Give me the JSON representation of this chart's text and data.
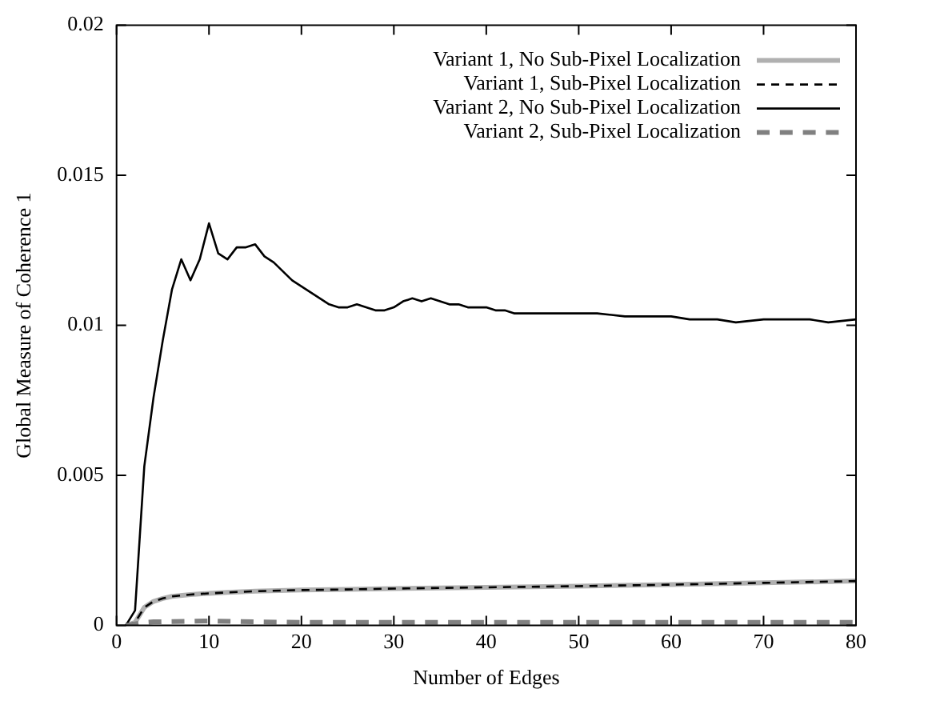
{
  "chart_data": {
    "type": "line",
    "xlabel": "Number of Edges",
    "ylabel": "Global Measure of Coherence 1",
    "xlim": [
      0,
      80
    ],
    "xticks": [
      0,
      10,
      20,
      30,
      40,
      50,
      60,
      70,
      80
    ],
    "ylim": [
      0,
      0.02
    ],
    "yticks": [
      0,
      0.005,
      0.01,
      0.015,
      0.02
    ],
    "grid": false,
    "legend": "top right",
    "marker": "none",
    "series": [
      {
        "name": "Variant 1, No Sub-Pixel Localization",
        "color": "#b0b0b0",
        "line_style": "solid",
        "x": [
          1,
          2,
          3,
          4,
          5,
          6,
          8,
          10,
          12,
          15,
          20,
          25,
          30,
          40,
          50,
          60,
          70,
          80
        ],
        "values": [
          0,
          0.0001,
          0.0006,
          0.0008,
          0.0009,
          0.00097,
          0.00103,
          0.00107,
          0.0011,
          0.00114,
          0.00118,
          0.0012,
          0.00123,
          0.00127,
          0.00131,
          0.00136,
          0.00142,
          0.00148
        ]
      },
      {
        "name": "Variant 1, Sub-Pixel Localization",
        "color": "#000000",
        "line_style": "dashed",
        "x": [
          1,
          2,
          3,
          4,
          5,
          6,
          8,
          10,
          12,
          15,
          20,
          25,
          30,
          40,
          50,
          60,
          70,
          80
        ],
        "values": [
          0,
          0.0001,
          0.0006,
          0.0008,
          0.0009,
          0.00097,
          0.00103,
          0.00107,
          0.0011,
          0.00114,
          0.00118,
          0.0012,
          0.00123,
          0.00127,
          0.00131,
          0.00136,
          0.00142,
          0.00148
        ]
      },
      {
        "name": "Variant 2, No Sub-Pixel Localization",
        "color": "#000000",
        "line_style": "solid",
        "x": [
          1,
          2,
          3,
          4,
          5,
          6,
          7,
          8,
          9,
          10,
          11,
          12,
          13,
          14,
          15,
          16,
          17,
          18,
          19,
          20,
          21,
          22,
          23,
          24,
          25,
          26,
          27,
          28,
          29,
          30,
          31,
          32,
          33,
          34,
          35,
          36,
          37,
          38,
          39,
          40,
          41,
          42,
          43,
          44,
          45,
          46,
          47,
          48,
          50,
          52,
          55,
          58,
          60,
          62,
          65,
          67,
          70,
          72,
          75,
          77,
          80
        ],
        "values": [
          0,
          0.0005,
          0.0053,
          0.0076,
          0.0095,
          0.0112,
          0.0122,
          0.0115,
          0.0122,
          0.0134,
          0.0124,
          0.0122,
          0.0126,
          0.0126,
          0.0127,
          0.0123,
          0.0121,
          0.0118,
          0.0115,
          0.0113,
          0.0111,
          0.0109,
          0.0107,
          0.0106,
          0.0106,
          0.0107,
          0.0106,
          0.0105,
          0.0105,
          0.0106,
          0.0108,
          0.0109,
          0.0108,
          0.0109,
          0.0108,
          0.0107,
          0.0107,
          0.0106,
          0.0106,
          0.0106,
          0.0105,
          0.0105,
          0.0104,
          0.0104,
          0.0104,
          0.0104,
          0.0104,
          0.0104,
          0.0104,
          0.0104,
          0.0103,
          0.0103,
          0.0103,
          0.0102,
          0.0102,
          0.0101,
          0.0102,
          0.0102,
          0.0102,
          0.0101,
          0.0102
        ]
      },
      {
        "name": "Variant 2, Sub-Pixel Localization",
        "color": "#808080",
        "line_style": "dashed",
        "x": [
          1,
          2,
          3,
          4,
          6,
          8,
          10,
          15,
          20,
          30,
          40,
          50,
          60,
          70,
          80
        ],
        "values": [
          0,
          5e-05,
          0.0001,
          0.00012,
          0.00013,
          0.00014,
          0.00015,
          0.00012,
          0.0001,
          0.0001,
          0.0001,
          0.0001,
          0.0001,
          0.0001,
          0.0001
        ]
      }
    ]
  }
}
